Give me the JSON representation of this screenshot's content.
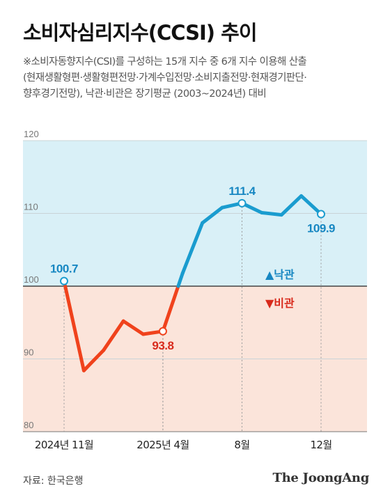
{
  "title": "소비자심리지수(CCSI) 추이",
  "note": [
    "※소비자동향지수(CSI)를 구성하는 15개 지수 중 6개 지수 이용해 산출",
    "(현재생활형편·생활형편전망·가계수입전망·소비지출전망·현재경기판단·",
    "향후경기전망), 낙관·비관은 장기평균 (2003~2024년) 대비"
  ],
  "source": "자료: 한국은행",
  "brand": "The JoongAng",
  "colors": {
    "optimism": "#1a9ccf",
    "pessimism": "#f0421c",
    "optimism_bg": "#d9f0f7",
    "pessimism_bg": "#fbe4da",
    "label_blue": "#1787c2",
    "label_red": "#d82a1c"
  },
  "chart_data": {
    "type": "line",
    "x": [
      "2024-11",
      "2024-12",
      "2025-01",
      "2025-02",
      "2025-03",
      "2025-04",
      "2025-05",
      "2025-06",
      "2025-07",
      "2025-08",
      "2025-09",
      "2025-10",
      "2025-11",
      "2025-12"
    ],
    "values": [
      100.7,
      88.4,
      91.2,
      95.2,
      93.4,
      93.8,
      101.8,
      108.7,
      110.8,
      111.4,
      110.1,
      109.8,
      112.4,
      109.9
    ],
    "baseline": 100,
    "ylim": [
      80,
      120
    ],
    "yticks": [
      "120",
      "110",
      "100",
      "90",
      "80"
    ],
    "xtick_labels": [
      {
        "index": 0,
        "label": "2024년 11월"
      },
      {
        "index": 5,
        "label": "2025년 4월"
      },
      {
        "index": 9,
        "label": "8월"
      },
      {
        "index": 13,
        "label": "12월"
      }
    ],
    "annotations": [
      {
        "index": 0,
        "label": "100.7",
        "color": "blue",
        "pos": "above"
      },
      {
        "index": 5,
        "label": "93.8",
        "color": "red",
        "pos": "below"
      },
      {
        "index": 9,
        "label": "111.4",
        "color": "blue",
        "pos": "above"
      },
      {
        "index": 13,
        "label": "109.9",
        "color": "blue",
        "pos": "below"
      }
    ],
    "legend": [
      {
        "symbol": "▲",
        "label": "낙관",
        "color": "blue"
      },
      {
        "symbol": "▼",
        "label": "비관",
        "color": "red"
      }
    ]
  }
}
